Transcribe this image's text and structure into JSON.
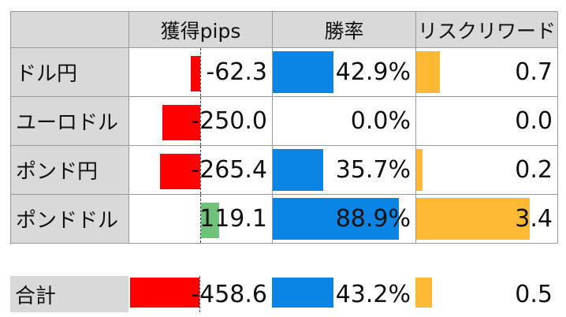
{
  "headers": [
    "",
    "獲得pips",
    "勝率",
    "リスクリワード"
  ],
  "colors": {
    "negative": "#ff0000",
    "positive": "#70c17c",
    "winrate": "#0a85e6",
    "rr": "#ffb833",
    "label_bg": "#d9d9d9"
  },
  "chart_data": {
    "type": "table",
    "columns": [
      "獲得pips",
      "勝率",
      "リスクリワード"
    ],
    "rows": [
      {
        "label": "ドル円",
        "pips": -62.3,
        "pips_text": "-62.3",
        "winrate": 42.9,
        "winrate_text": "42.9%",
        "rr": 0.7,
        "rr_text": "0.7"
      },
      {
        "label": "ユーロドル",
        "pips": -250.0,
        "pips_text": "-250.0",
        "winrate": 0.0,
        "winrate_text": "0.0%",
        "rr": 0.0,
        "rr_text": "0.0"
      },
      {
        "label": "ポンド円",
        "pips": -265.4,
        "pips_text": "-265.4",
        "winrate": 35.7,
        "winrate_text": "35.7%",
        "rr": 0.2,
        "rr_text": "0.2"
      },
      {
        "label": "ポンドドル",
        "pips": 119.1,
        "pips_text": "119.1",
        "winrate": 88.9,
        "winrate_text": "88.9%",
        "rr": 3.4,
        "rr_text": "3.4"
      }
    ],
    "total": {
      "label": "合計",
      "pips": -458.6,
      "pips_text": "-458.6",
      "winrate": 43.2,
      "winrate_text": "43.2%",
      "rr": 0.5,
      "rr_text": "0.5"
    }
  }
}
